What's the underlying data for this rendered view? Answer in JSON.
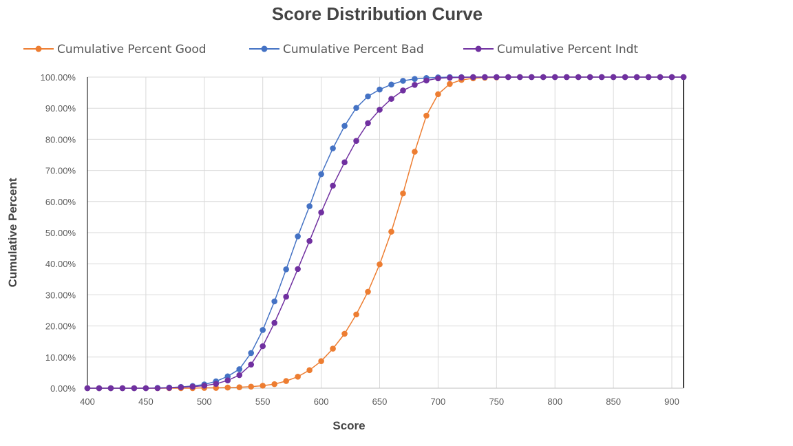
{
  "chart_data": {
    "type": "line",
    "title": "Score Distribution Curve",
    "xlabel": "Score",
    "ylabel": "Cumulative Percent",
    "xlim": [
      400,
      910
    ],
    "ylim": [
      0,
      100
    ],
    "xticks": [
      400,
      450,
      500,
      550,
      600,
      650,
      700,
      750,
      800,
      850,
      900
    ],
    "xtick_labels": [
      "400",
      "450",
      "500",
      "550",
      "600",
      "650",
      "700",
      "750",
      "800",
      "850",
      "900"
    ],
    "yticks": [
      0,
      10,
      20,
      30,
      40,
      50,
      60,
      70,
      80,
      90,
      100
    ],
    "ytick_labels": [
      "0.00%",
      "10.00%",
      "20.00%",
      "30.00%",
      "40.00%",
      "50.00%",
      "60.00%",
      "70.00%",
      "80.00%",
      "90.00%",
      "100.00%"
    ],
    "grid": true,
    "legend_position": "top",
    "x": [
      400,
      410,
      420,
      430,
      440,
      450,
      460,
      470,
      480,
      490,
      500,
      510,
      520,
      530,
      540,
      550,
      560,
      570,
      580,
      590,
      600,
      610,
      620,
      630,
      640,
      650,
      660,
      670,
      680,
      690,
      700,
      710,
      720,
      730,
      740,
      750,
      760,
      770,
      780,
      790,
      800,
      810,
      820,
      830,
      840,
      850,
      860,
      870,
      880,
      890,
      900,
      910
    ],
    "series": [
      {
        "name": "Cumulative Percent Good",
        "color": "#ED7D31",
        "values": [
          0,
          0,
          0,
          0,
          0,
          0,
          0,
          0,
          0,
          0,
          0.1,
          0.1,
          0.2,
          0.3,
          0.5,
          0.8,
          1.3,
          2.3,
          3.7,
          5.8,
          8.7,
          12.7,
          17.5,
          23.7,
          31.0,
          39.8,
          50.3,
          62.6,
          76.0,
          87.6,
          94.5,
          97.8,
          99.1,
          99.6,
          99.8,
          99.9,
          100,
          100,
          100,
          100,
          100,
          100,
          100,
          100,
          100,
          100,
          100,
          100,
          100,
          100,
          100,
          100
        ]
      },
      {
        "name": "Cumulative Percent Bad",
        "color": "#4472C4",
        "values": [
          0,
          0,
          0,
          0,
          0,
          0,
          0.1,
          0.2,
          0.4,
          0.7,
          1.2,
          2.2,
          3.8,
          6.1,
          11.3,
          18.7,
          27.9,
          38.2,
          48.8,
          58.5,
          68.8,
          77.1,
          84.3,
          90.1,
          93.8,
          96.0,
          97.6,
          98.8,
          99.4,
          99.7,
          99.9,
          100,
          100,
          100,
          100,
          100,
          100,
          100,
          100,
          100,
          100,
          100,
          100,
          100,
          100,
          100,
          100,
          100,
          100,
          100,
          100,
          100
        ]
      },
      {
        "name": "Cumulative Percent Indt",
        "color": "#7030A0",
        "values": [
          0,
          0,
          0,
          0,
          0,
          0,
          0,
          0.1,
          0.3,
          0.5,
          0.8,
          1.4,
          2.5,
          4.2,
          7.6,
          13.5,
          21.0,
          29.4,
          38.3,
          47.3,
          56.5,
          65.1,
          72.6,
          79.5,
          85.2,
          89.5,
          93.0,
          95.7,
          97.5,
          98.9,
          99.6,
          99.8,
          99.9,
          100,
          100,
          100,
          100,
          100,
          100,
          100,
          100,
          100,
          100,
          100,
          100,
          100,
          100,
          100,
          100,
          100,
          100,
          100
        ]
      }
    ]
  }
}
